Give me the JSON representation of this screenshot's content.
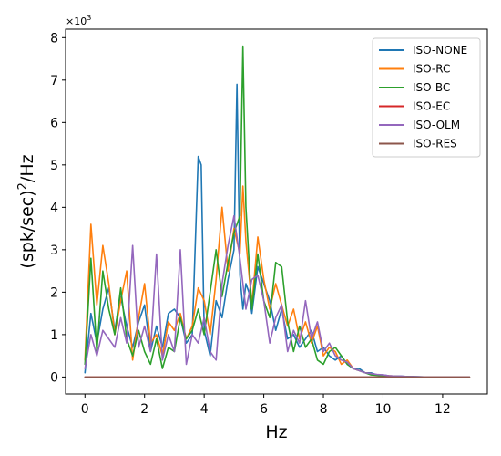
{
  "chart_data": {
    "type": "line",
    "title": "",
    "xlabel": "Hz",
    "ylabel_main": "(spk/sec)",
    "ylabel_sup": "2",
    "ylabel_tail": "/Hz",
    "y_multiplier_base": "×10",
    "y_multiplier_exp": "3",
    "xlim": [
      -0.65,
      13.5
    ],
    "ylim": [
      -0.4,
      8.2
    ],
    "xticks": [
      0,
      2,
      4,
      6,
      8,
      10,
      12
    ],
    "yticks": [
      0,
      1,
      2,
      3,
      4,
      5,
      6,
      7,
      8
    ],
    "grid": false,
    "legend_position": "top-right",
    "series": [
      {
        "name": "ISO-NONE",
        "color": "#1f77b4",
        "x": [
          0.0,
          0.2,
          0.4,
          0.6,
          0.8,
          1.0,
          1.2,
          1.4,
          1.6,
          1.8,
          2.0,
          2.2,
          2.4,
          2.6,
          2.8,
          3.0,
          3.2,
          3.4,
          3.6,
          3.8,
          3.9,
          4.0,
          4.2,
          4.4,
          4.6,
          4.8,
          5.0,
          5.1,
          5.2,
          5.3,
          5.4,
          5.5,
          5.6,
          5.8,
          6.0,
          6.2,
          6.4,
          6.6,
          6.8,
          7.0,
          7.2,
          7.4,
          7.6,
          7.8,
          8.0,
          8.2,
          8.4,
          8.6,
          8.8,
          9.0,
          9.2,
          9.4,
          9.6,
          9.8,
          10.0,
          10.2,
          10.4,
          10.6,
          10.8,
          11.0,
          11.5,
          12.0,
          12.9
        ],
        "y": [
          0.1,
          1.5,
          0.8,
          1.6,
          2.1,
          1.1,
          1.9,
          1.2,
          0.7,
          1.3,
          1.7,
          0.6,
          1.2,
          0.7,
          1.5,
          1.6,
          1.4,
          0.8,
          1.0,
          5.2,
          5.0,
          1.1,
          0.5,
          1.8,
          1.4,
          2.3,
          3.0,
          6.9,
          2.4,
          1.6,
          2.2,
          2.0,
          1.5,
          2.6,
          2.2,
          1.8,
          1.1,
          1.6,
          0.9,
          1.0,
          0.7,
          0.9,
          1.1,
          0.6,
          0.7,
          0.5,
          0.4,
          0.5,
          0.3,
          0.2,
          0.2,
          0.1,
          0.1,
          0.05,
          0.05,
          0.03,
          0.02,
          0.02,
          0.01,
          0.01,
          0.0,
          0.0,
          0.0
        ]
      },
      {
        "name": "ISO-RC",
        "color": "#ff7f0e",
        "x": [
          0.0,
          0.2,
          0.4,
          0.6,
          0.8,
          1.0,
          1.2,
          1.4,
          1.6,
          1.8,
          2.0,
          2.2,
          2.4,
          2.6,
          2.8,
          3.0,
          3.2,
          3.4,
          3.6,
          3.8,
          4.0,
          4.2,
          4.4,
          4.6,
          4.8,
          5.0,
          5.2,
          5.3,
          5.4,
          5.6,
          5.8,
          6.0,
          6.2,
          6.4,
          6.6,
          6.8,
          7.0,
          7.2,
          7.4,
          7.6,
          7.8,
          8.0,
          8.2,
          8.4,
          8.6,
          8.8,
          9.0,
          9.2,
          9.4,
          9.6,
          9.8,
          10.0,
          10.2,
          10.4,
          10.6,
          10.8,
          11.0,
          11.5,
          12.0,
          12.9
        ],
        "y": [
          0.4,
          3.6,
          1.7,
          3.1,
          2.2,
          1.0,
          1.8,
          2.5,
          0.4,
          1.4,
          2.2,
          0.8,
          1.0,
          0.5,
          1.3,
          1.1,
          1.5,
          0.9,
          1.2,
          2.1,
          1.8,
          1.0,
          2.3,
          4.0,
          2.5,
          3.5,
          2.9,
          4.5,
          3.2,
          1.7,
          3.3,
          2.3,
          1.6,
          2.2,
          1.7,
          1.2,
          1.6,
          0.9,
          1.3,
          0.8,
          1.2,
          0.5,
          0.7,
          0.6,
          0.3,
          0.4,
          0.2,
          0.15,
          0.1,
          0.08,
          0.05,
          0.04,
          0.03,
          0.02,
          0.01,
          0.01,
          0.0,
          0.0,
          0.0,
          0.0
        ]
      },
      {
        "name": "ISO-BC",
        "color": "#2ca02c",
        "x": [
          0.0,
          0.2,
          0.4,
          0.6,
          0.8,
          1.0,
          1.2,
          1.4,
          1.6,
          1.8,
          2.0,
          2.2,
          2.4,
          2.6,
          2.8,
          3.0,
          3.2,
          3.4,
          3.6,
          3.8,
          4.0,
          4.2,
          4.4,
          4.6,
          4.8,
          5.0,
          5.2,
          5.3,
          5.4,
          5.6,
          5.8,
          6.0,
          6.2,
          6.4,
          6.6,
          6.8,
          7.0,
          7.2,
          7.4,
          7.6,
          7.8,
          8.0,
          8.2,
          8.4,
          8.6,
          8.8,
          9.0,
          9.2,
          9.4,
          9.6,
          9.8,
          10.0,
          10.2,
          10.4,
          10.6,
          10.8,
          11.0,
          11.5,
          12.0,
          12.9
        ],
        "y": [
          0.3,
          2.8,
          0.6,
          2.5,
          1.6,
          1.0,
          2.1,
          0.9,
          0.5,
          1.1,
          0.6,
          0.3,
          0.9,
          0.2,
          0.7,
          0.6,
          1.4,
          0.9,
          1.1,
          1.6,
          1.0,
          2.0,
          3.0,
          1.9,
          2.7,
          3.4,
          3.8,
          7.8,
          4.0,
          1.6,
          2.9,
          1.8,
          1.4,
          2.7,
          2.6,
          1.3,
          0.6,
          1.2,
          0.7,
          0.9,
          0.4,
          0.3,
          0.6,
          0.7,
          0.5,
          0.3,
          0.2,
          0.15,
          0.1,
          0.05,
          0.04,
          0.03,
          0.02,
          0.02,
          0.01,
          0.01,
          0.0,
          0.0,
          0.0,
          0.0
        ]
      },
      {
        "name": "ISO-EC",
        "color": "#d62728",
        "x": [
          0.0,
          12.9
        ],
        "y": [
          0.0,
          0.0
        ]
      },
      {
        "name": "ISO-OLM",
        "color": "#9467bd",
        "x": [
          0.0,
          0.2,
          0.4,
          0.6,
          0.8,
          1.0,
          1.2,
          1.4,
          1.6,
          1.8,
          2.0,
          2.2,
          2.4,
          2.6,
          2.8,
          3.0,
          3.2,
          3.4,
          3.6,
          3.8,
          4.0,
          4.2,
          4.4,
          4.6,
          4.8,
          5.0,
          5.2,
          5.4,
          5.6,
          5.8,
          6.0,
          6.2,
          6.4,
          6.6,
          6.8,
          7.0,
          7.2,
          7.4,
          7.6,
          7.8,
          8.0,
          8.2,
          8.4,
          8.6,
          8.8,
          9.0,
          9.2,
          9.4,
          9.6,
          9.8,
          10.0,
          10.2,
          10.4,
          10.6,
          10.8,
          11.0,
          11.5,
          12.0,
          12.9
        ],
        "y": [
          0.2,
          1.0,
          0.5,
          1.1,
          0.9,
          0.7,
          1.4,
          0.8,
          3.1,
          0.7,
          1.2,
          0.6,
          2.9,
          0.4,
          1.0,
          0.6,
          3.0,
          0.3,
          1.0,
          0.8,
          1.4,
          0.6,
          0.4,
          2.2,
          3.1,
          3.8,
          2.8,
          1.6,
          2.3,
          2.4,
          1.8,
          0.8,
          1.4,
          1.7,
          0.6,
          1.1,
          0.8,
          1.8,
          0.9,
          1.3,
          0.6,
          0.8,
          0.5,
          0.4,
          0.35,
          0.2,
          0.15,
          0.1,
          0.08,
          0.06,
          0.05,
          0.03,
          0.02,
          0.02,
          0.01,
          0.01,
          0.0,
          0.0,
          0.0
        ]
      },
      {
        "name": "ISO-RES",
        "color": "#8c564b",
        "x": [
          0.0,
          12.9
        ],
        "y": [
          0.0,
          0.0
        ]
      }
    ]
  }
}
